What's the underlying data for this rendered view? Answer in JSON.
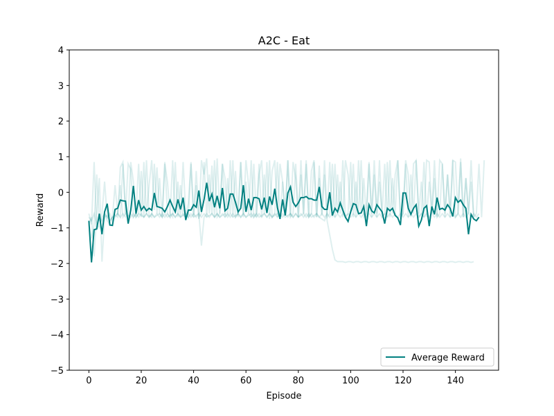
{
  "chart_data": {
    "type": "line",
    "title": "A2C - Eat",
    "xlabel": "Episode",
    "ylabel": "Reward",
    "xlim": [
      -7.5,
      156.5
    ],
    "ylim": [
      -5,
      4
    ],
    "xticks": [
      0,
      20,
      40,
      60,
      80,
      100,
      120,
      140
    ],
    "yticks": [
      -5,
      -4,
      -3,
      -2,
      -1,
      0,
      1,
      2,
      3,
      4
    ],
    "grid": false,
    "legend_position": "lower-right",
    "colors": {
      "average": "#008080",
      "runs": "#008080"
    },
    "series": [
      {
        "name": "Average Reward",
        "x_start": 0,
        "values": [
          -0.8,
          -1.97,
          -1.05,
          -1.03,
          -0.6,
          -1.18,
          -0.55,
          -0.32,
          -0.92,
          -0.93,
          -0.48,
          -0.45,
          -0.22,
          -0.24,
          -0.25,
          -0.88,
          -0.5,
          0.18,
          -0.6,
          -0.22,
          -0.5,
          -0.4,
          -0.52,
          -0.45,
          -0.5,
          -0.02,
          -0.4,
          -0.42,
          -0.45,
          -0.55,
          -0.4,
          -0.22,
          -0.4,
          -0.55,
          -0.2,
          -0.48,
          -0.15,
          -0.78,
          -0.5,
          -0.5,
          -0.35,
          -0.42,
          0.05,
          -0.55,
          -0.2,
          0.27,
          -0.25,
          -0.05,
          -0.42,
          -0.1,
          -0.45,
          0.12,
          -0.52,
          -0.45,
          -0.05,
          -0.05,
          -0.28,
          -0.55,
          -0.45,
          0.2,
          -0.55,
          -0.18,
          -0.5,
          -0.15,
          -0.15,
          -0.18,
          -0.48,
          -0.15,
          -0.58,
          -0.12,
          -0.35,
          0.1,
          -0.42,
          -0.75,
          -0.2,
          -0.65,
          -0.02,
          0.15,
          -0.28,
          -0.4,
          -0.3,
          -0.15,
          -0.15,
          -0.12,
          -0.18,
          -0.18,
          -0.22,
          -0.22,
          0.15,
          -0.4,
          -0.48,
          -0.48,
          0.0,
          -0.65,
          -0.45,
          -0.55,
          -0.3,
          -0.5,
          -0.7,
          -0.82,
          -0.55,
          -0.32,
          -0.35,
          -0.6,
          -0.58,
          -0.4,
          -0.95,
          -0.35,
          -0.52,
          -0.58,
          -0.35,
          -0.45,
          -0.55,
          -0.88,
          -0.45,
          -0.52,
          -0.45,
          -0.65,
          -0.72,
          -0.92,
          -0.02,
          -0.02,
          -0.45,
          -0.62,
          -0.45,
          -0.35,
          -0.95,
          -0.78,
          -0.45,
          -0.38,
          -0.95,
          -0.4,
          -0.62,
          -0.15,
          -0.48,
          -0.45,
          -0.5,
          -0.35,
          -0.45,
          -0.68,
          -0.15,
          -0.28,
          -0.22,
          -0.35,
          -0.45,
          -1.18,
          -0.62,
          -0.75,
          -0.8,
          -0.7
        ]
      },
      {
        "name": "",
        "x_start": 0,
        "values": [
          -0.6,
          -0.9,
          0.85,
          -1.0,
          -0.7,
          -0.8,
          -0.6,
          -0.7,
          -0.8,
          -0.7,
          -0.65,
          -0.7,
          0.7,
          0.85,
          -0.6,
          0.8,
          0.65,
          -0.7,
          -0.6,
          0.8,
          -0.7,
          0.85,
          -0.6,
          0.2,
          0.9,
          -0.5,
          0.7,
          -0.6,
          -0.7,
          0.8,
          0.3,
          -0.6,
          -0.7,
          0.85,
          -0.7,
          0.2,
          -0.65,
          -0.7,
          -0.3,
          0.85,
          -0.7,
          0.2,
          -0.75,
          0.9,
          0.5,
          0.95,
          -0.6,
          0.75,
          -0.7,
          0.95,
          -0.6,
          0.8,
          0.4,
          -0.65,
          0.9,
          -0.7,
          0.6,
          -0.7,
          0.85,
          -0.6,
          0.9,
          0.2,
          -0.7,
          0.8,
          -0.7,
          0.5,
          0.9,
          -0.6,
          0.85,
          -0.75,
          0.6,
          0.9,
          -0.7,
          0.8,
          0.3,
          -0.65,
          0.9,
          -0.7,
          0.85,
          0.4,
          -0.7,
          0.9,
          -0.6,
          0.8,
          -0.7,
          0.6,
          0.9,
          -0.7,
          0.75,
          -0.65,
          0.5,
          -0.8,
          -1.2,
          -1.6,
          -1.9,
          -1.95,
          -1.95,
          -1.95,
          -1.97,
          -1.95,
          -1.95,
          -1.97,
          -1.95,
          -1.95,
          -1.97,
          -1.95,
          -1.95,
          -1.97,
          -1.95,
          -1.95,
          -1.97,
          -1.95,
          -1.95,
          -1.97,
          -1.95,
          -1.95,
          -1.97,
          -1.95,
          -1.95,
          -1.97,
          -1.95,
          -1.95,
          -1.97,
          -1.95,
          -1.95,
          -1.97,
          -1.95,
          -1.95,
          -1.97,
          -1.95,
          -1.95,
          -1.97,
          -1.95,
          -1.95,
          -1.97,
          -1.95,
          -1.95,
          -1.97,
          -1.95,
          -1.95,
          -1.97,
          -1.95,
          -1.95,
          -1.97,
          -1.95,
          -1.95,
          -1.97,
          -1.95
        ]
      },
      {
        "name": "",
        "x_start": 0,
        "values": [
          -0.9,
          -0.7,
          -1.8,
          -0.6,
          0.4,
          -1.95,
          -0.7,
          -0.65,
          -0.8,
          -0.7,
          0.2,
          -0.6,
          -0.7,
          0.8,
          -0.6,
          -0.7,
          0.85,
          0.3,
          -0.7,
          -0.6,
          0.6,
          -0.7,
          0.9,
          -0.65,
          -0.7,
          0.8,
          -0.6,
          0.4,
          -0.7,
          0.85,
          -0.6,
          -0.7,
          0.9,
          -0.6,
          0.3,
          -0.7,
          0.85,
          -0.6,
          -0.7,
          0.8,
          -0.65,
          0.6,
          -0.7,
          -0.6,
          0.85,
          -0.7,
          0.5,
          -0.6,
          0.9,
          -0.7,
          -0.6,
          0.8,
          -0.7,
          0.4,
          -0.6,
          0.9,
          -0.7,
          -0.6,
          0.85,
          -0.7,
          0.3,
          -0.6,
          0.9,
          -0.7,
          -0.6,
          0.8,
          -0.7,
          0.5,
          -0.6,
          0.9,
          -0.7,
          -0.6,
          0.85,
          -0.7,
          0.3,
          -0.6,
          0.9,
          -0.7,
          -0.6,
          0.8,
          -0.7,
          0.5,
          -0.6,
          0.9,
          -0.7,
          -0.6,
          0.85,
          -0.7,
          0.4,
          -0.6,
          0.9,
          -0.7,
          -0.6,
          0.8,
          -0.7,
          0.5,
          -0.6,
          0.9,
          -0.7,
          -0.6,
          0.85,
          -0.7,
          0.3,
          -0.6,
          0.9,
          -0.7,
          -0.6,
          0.8,
          -0.7,
          0.5,
          -0.6,
          0.9,
          -0.7,
          -0.6,
          0.85,
          -0.7,
          0.4,
          -0.6,
          0.9,
          -0.7,
          -0.6,
          0.8,
          -0.7,
          0.5,
          -0.6,
          0.9,
          -0.7,
          -0.6,
          0.85,
          -0.7,
          0.3,
          -0.6,
          0.9,
          -0.7,
          -0.6,
          0.8,
          -0.7,
          0.5,
          -0.6,
          0.9,
          -0.7,
          -0.6,
          0.85,
          -0.7,
          0.4,
          -0.6,
          0.9,
          -0.7,
          -0.6,
          0.8,
          -0.7,
          0.9
        ]
      },
      {
        "name": "",
        "x_start": 0,
        "values": [
          -0.7,
          -0.8,
          -0.6,
          -0.9,
          -1.0,
          -0.7,
          -0.6,
          -0.8,
          -0.9,
          -0.7,
          -0.65,
          -0.6,
          -0.7,
          -0.6,
          -0.7,
          -0.65,
          -0.7,
          -0.6,
          -0.7,
          -0.6,
          -0.65,
          -0.7,
          -0.6,
          -0.7,
          -0.6,
          -0.7,
          -0.65,
          -0.6,
          -0.7,
          -0.6,
          -0.7,
          -0.65,
          -0.6,
          -0.7,
          -0.6,
          -0.7,
          -0.65,
          -0.6,
          -0.7,
          -0.6,
          -0.7,
          -0.65,
          -0.6,
          -0.7,
          -0.6,
          -0.7,
          -0.65,
          -0.6,
          -0.7,
          -0.6,
          -0.7,
          -0.65,
          -0.6,
          -0.7,
          -0.6,
          -0.7,
          -0.65,
          -0.6,
          -0.7,
          -0.6,
          -0.7,
          -0.65,
          -0.6,
          -0.7,
          -0.6,
          -0.7,
          -0.65,
          -0.6,
          -0.7,
          -0.6,
          -0.7,
          -0.65,
          -0.6,
          -0.7,
          -0.6,
          -0.7,
          -0.65,
          -0.6,
          -0.7,
          -0.6,
          -0.7,
          -0.65,
          -0.6,
          -0.7,
          -0.6,
          -0.7,
          -0.65,
          -0.6,
          -0.7,
          -0.75,
          -0.8,
          -0.6,
          0.85,
          -0.7,
          0.8,
          -0.6,
          0.3,
          -0.7,
          0.9,
          0.5,
          -0.6,
          0.8,
          -0.7,
          0.9,
          -0.6,
          0.4,
          -0.7,
          0.85,
          -0.6,
          0.9,
          -0.7,
          0.3,
          -0.6,
          0.8,
          -0.7,
          0.9,
          -0.6,
          0.5,
          0.9,
          -0.7,
          -0.6,
          0.9,
          0.5,
          -0.7,
          0.8,
          0.9,
          -0.6,
          0.3,
          -0.7,
          0.9,
          0.85,
          -0.6,
          0.4,
          -0.7,
          0.9,
          0.8,
          -0.6,
          0.5,
          -0.7,
          0.9,
          0.85,
          -0.6,
          0.95,
          -0.7,
          0.4,
          -0.6,
          0.3,
          -0.7
        ]
      },
      {
        "name": "",
        "x_start": 0,
        "values": [
          -0.9,
          -1.3,
          -0.9,
          0.5,
          -0.8,
          -0.6,
          0.3,
          -0.7,
          -0.6,
          -0.8,
          -0.7,
          -0.6,
          0.2,
          -0.7,
          -0.6,
          -0.7,
          -0.6,
          -0.7,
          -0.6,
          -0.7,
          -0.6,
          -0.7,
          -0.6,
          -0.7,
          -0.6,
          -0.7,
          -0.6,
          -0.7,
          -0.6,
          -0.7,
          -0.6,
          -0.7,
          -0.6,
          -0.7,
          -0.6,
          -0.7,
          -0.6,
          -0.7,
          -0.6,
          -0.7,
          -0.6,
          -0.7,
          -0.6,
          -1.5,
          -0.7,
          -0.6,
          -0.7,
          -0.6,
          -0.7,
          -0.6,
          -0.7,
          -0.6,
          -0.7,
          -0.6,
          -0.7,
          -0.6,
          -0.7,
          -0.6,
          -0.7,
          -0.6,
          -0.7,
          -0.6,
          -0.7,
          -0.6,
          -0.7,
          -0.6,
          -0.7,
          -0.6,
          -0.7,
          -0.6,
          -0.7,
          -0.6,
          -0.7,
          -0.6,
          -0.7,
          -0.6,
          -0.7,
          -0.6,
          -0.7,
          -0.6,
          -0.7,
          -0.6,
          -0.7,
          -0.6,
          -0.7,
          -0.6,
          -0.7,
          -0.6,
          -0.7,
          -0.6,
          -0.7,
          -0.6,
          -0.7,
          -0.6,
          -0.7,
          -0.6,
          -0.7,
          -0.6,
          -0.7,
          -0.6,
          -0.7,
          -0.6,
          -0.7,
          -0.6,
          -0.7,
          -0.6,
          -0.7,
          -0.6,
          -0.7,
          -0.6,
          -0.7,
          -0.6,
          -0.7,
          -0.6,
          -0.7,
          -0.6,
          -0.7,
          -0.6,
          -0.7,
          -0.6,
          -0.7,
          -0.6,
          -0.7,
          -0.6,
          -0.7,
          -0.6,
          -0.7,
          -0.6,
          -0.7,
          -0.6,
          -0.7,
          -0.6,
          -0.7,
          -0.6,
          -0.7,
          -0.6,
          -0.7,
          -0.6,
          -0.7,
          -0.6,
          -0.7,
          -0.6,
          -0.7,
          -0.6,
          -0.7,
          -0.6,
          -0.7,
          -0.6,
          -0.7,
          -0.6
        ]
      }
    ]
  }
}
